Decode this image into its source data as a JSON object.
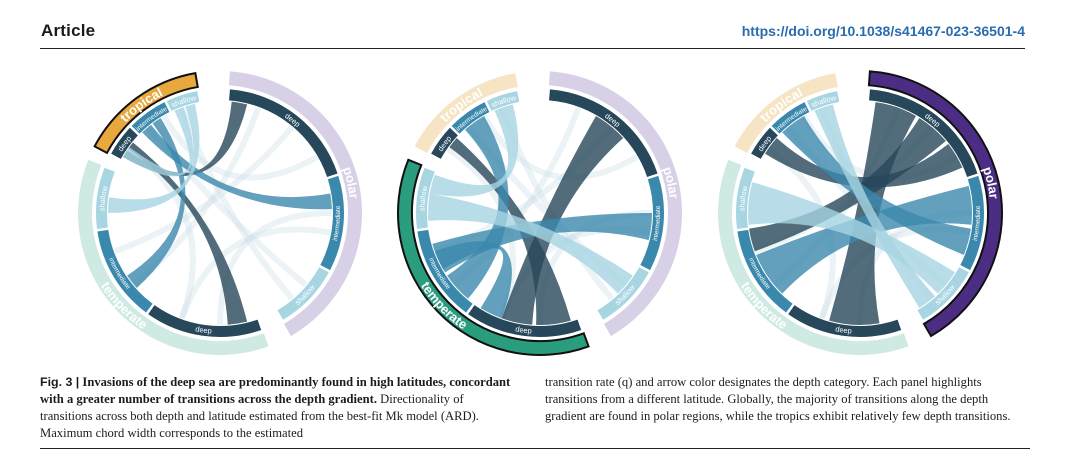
{
  "header": {
    "section": "Article",
    "doi": "https://doi.org/10.1038/s41467-023-36501-4"
  },
  "figure": {
    "panel_labels": {
      "tropical": "tropical",
      "polar": "polar",
      "temperate": "temperate",
      "deep": "deep",
      "intermediate": "intermediate",
      "shallow": "shallow"
    },
    "colors": {
      "tropical": "#e8a83e",
      "tropical_light": "#f6e4c4",
      "polar": "#4b2e83",
      "polar_light": "#d8d0e6",
      "temperate": "#2a9d7f",
      "temperate_light": "#cfeae2",
      "deep": "#27475a",
      "intermediate": "#3b88ad",
      "shallow": "#a7d5e2"
    },
    "highlighted_latitude": [
      "tropical",
      "temperate",
      "polar"
    ]
  },
  "caption": {
    "fig_num": "Fig. 3 |",
    "title": "Invasions of the deep sea are predominantly found in high latitudes, concordant with a greater number of transitions across the depth gradient.",
    "body_left": "Directionality of transitions across both depth and latitude estimated from the best-fit Mk model (ARD). Maximum chord width corresponds to the estimated",
    "body_right": "transition rate (q) and arrow color designates the depth category. Each panel highlights transitions from a different latitude. Globally, the majority of transitions along the depth gradient are found in polar regions, while the tropics exhibit relatively few depth transitions."
  }
}
